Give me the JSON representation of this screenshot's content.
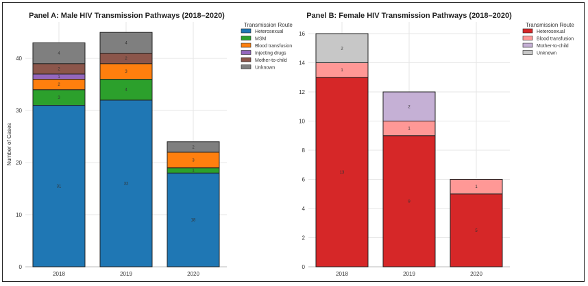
{
  "chart_data": [
    {
      "type": "bar",
      "stacked": true,
      "title": "Panel A: Male HIV Transmission Pathways (2018–2020)",
      "xlabel": "",
      "ylabel": "Number of Cases",
      "ylim": [
        0,
        47
      ],
      "yticks": [
        0,
        10,
        20,
        30,
        40
      ],
      "grid": true,
      "categories": [
        "2018",
        "2019",
        "2020"
      ],
      "legend_title": "Transmission Route",
      "legend_position": "top-right",
      "series": [
        {
          "name": "Heterosexual",
          "color": "#1f77b4",
          "values": [
            31,
            32,
            18
          ]
        },
        {
          "name": "MSM",
          "color": "#2ca02c",
          "values": [
            3,
            4,
            1
          ]
        },
        {
          "name": "Blood transfusion",
          "color": "#ff7f0e",
          "values": [
            2,
            3,
            3
          ]
        },
        {
          "name": "Injecting drugs",
          "color": "#9467bd",
          "values": [
            1,
            0,
            0
          ]
        },
        {
          "name": "Mother-to-child",
          "color": "#8c564b",
          "values": [
            2,
            2,
            0
          ]
        },
        {
          "name": "Unknown",
          "color": "#7f7f7f",
          "values": [
            4,
            4,
            2
          ]
        }
      ]
    },
    {
      "type": "bar",
      "stacked": true,
      "title": "Panel B: Female HIV Transmission Pathways (2018–2020)",
      "xlabel": "",
      "ylabel": "",
      "ylim": [
        0,
        16.8
      ],
      "yticks": [
        0,
        2,
        4,
        6,
        8,
        10,
        12,
        14,
        16
      ],
      "grid": true,
      "categories": [
        "2018",
        "2019",
        "2020"
      ],
      "legend_title": "Transmission Route",
      "legend_position": "top-right",
      "series": [
        {
          "name": "Heterosexual",
          "color": "#d62728",
          "values": [
            13,
            9,
            5
          ]
        },
        {
          "name": "Blood transfusion",
          "color": "#ff9896",
          "values": [
            1,
            1,
            1
          ]
        },
        {
          "name": "Mother-to-child",
          "color": "#c5b0d5",
          "values": [
            0,
            2,
            0
          ]
        },
        {
          "name": "Unknown",
          "color": "#c7c7c7",
          "values": [
            2,
            0,
            0
          ]
        }
      ]
    }
  ]
}
